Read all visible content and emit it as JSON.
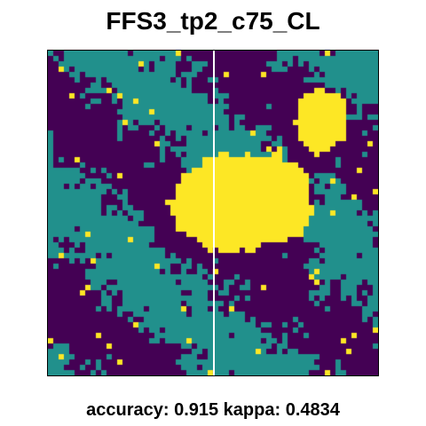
{
  "title": "FFS3_tp2_c75_CL",
  "caption": "accuracy: 0.915 kappa: 0.4834",
  "map": {
    "classes": [
      {
        "id": 1,
        "color": "#440154"
      },
      {
        "id": 2,
        "color": "#21908c"
      },
      {
        "id": 3,
        "color": "#fde725"
      }
    ]
  }
}
